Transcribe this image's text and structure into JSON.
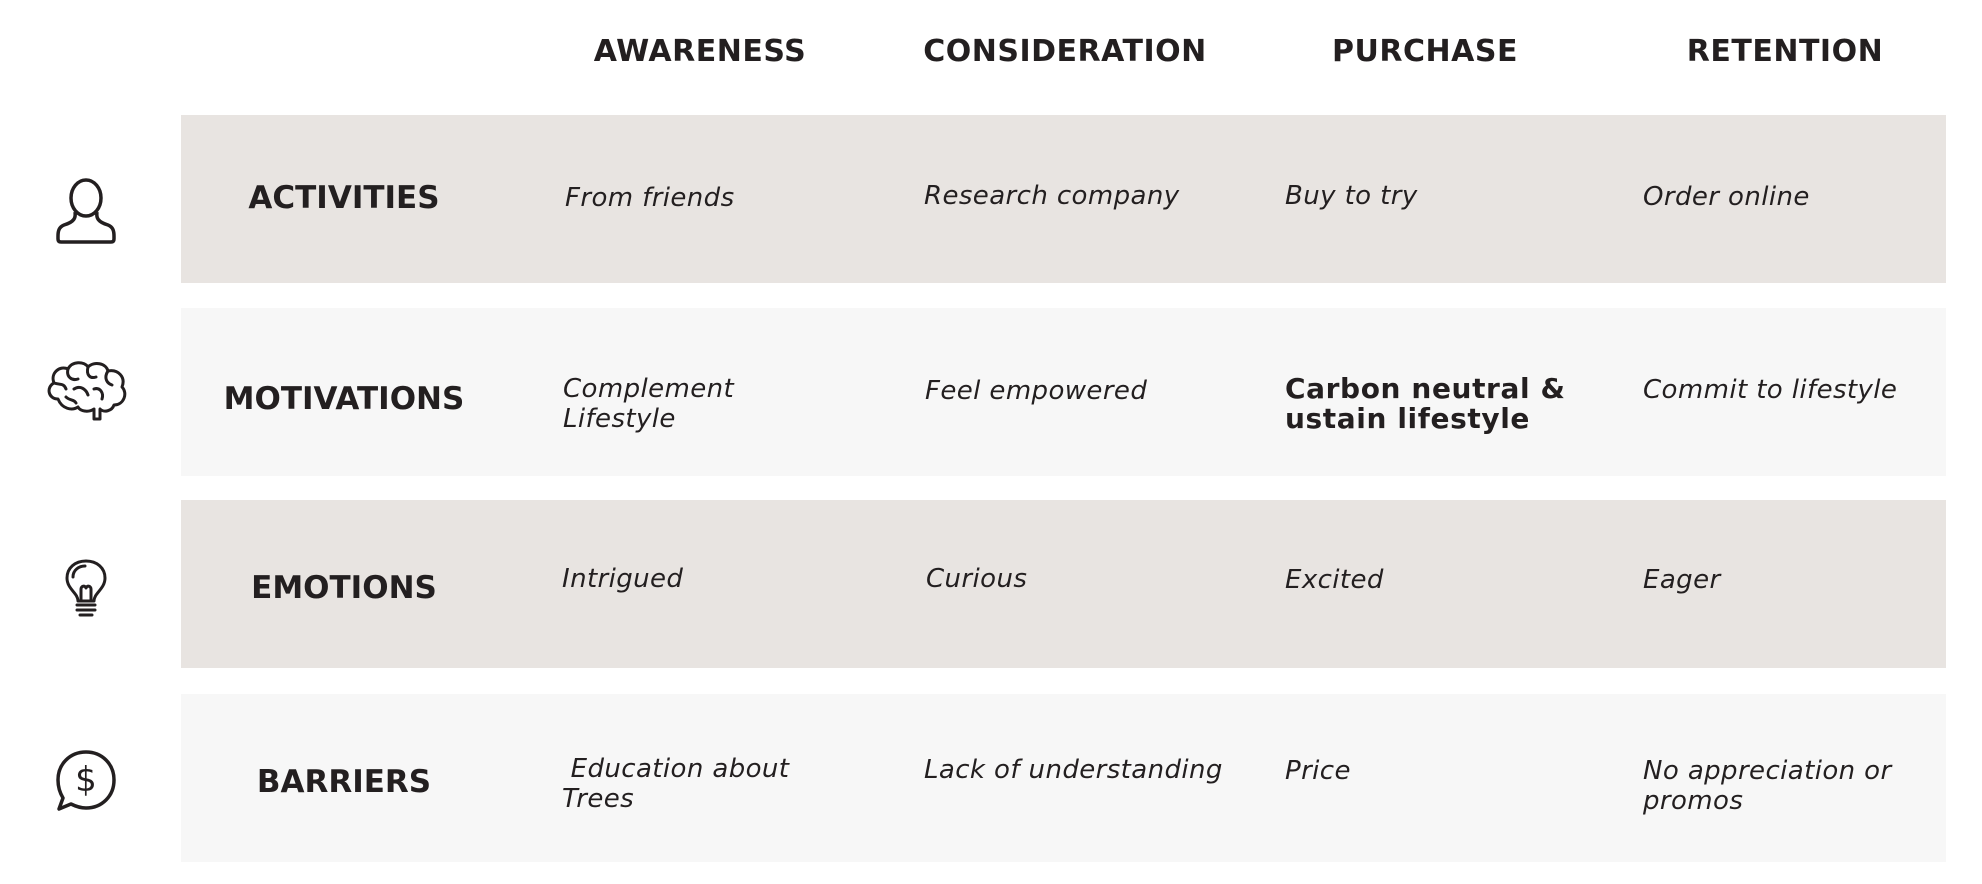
{
  "colors": {
    "band_dark": "#e8e4e1",
    "band_light": "#f7f7f7",
    "text": "#231f20"
  },
  "columns": [
    "AWARENESS",
    "CONSIDERATION",
    "PURCHASE",
    "RETENTION"
  ],
  "rows": [
    {
      "icon": "person-icon",
      "label": "ACTIVITIES",
      "cells": [
        "From friends",
        "Research company",
        "Buy to try",
        "Order online"
      ]
    },
    {
      "icon": "brain-icon",
      "label": "MOTIVATIONS",
      "cells": [
        "Complement\nLifestyle",
        "Feel empowered",
        "Carbon neutral &\nustain lifestyle",
        "Commit to lifestyle"
      ]
    },
    {
      "icon": "lightbulb-icon",
      "label": "EMOTIONS",
      "cells": [
        "Intrigued",
        "Curious",
        "Excited",
        "Eager"
      ]
    },
    {
      "icon": "dollar-speech-bubble-icon",
      "label": "BARRIERS",
      "cells": [
        " Education about\nTrees",
        "Lack of understanding",
        "Price",
        "No appreciation or\npromos"
      ]
    }
  ]
}
